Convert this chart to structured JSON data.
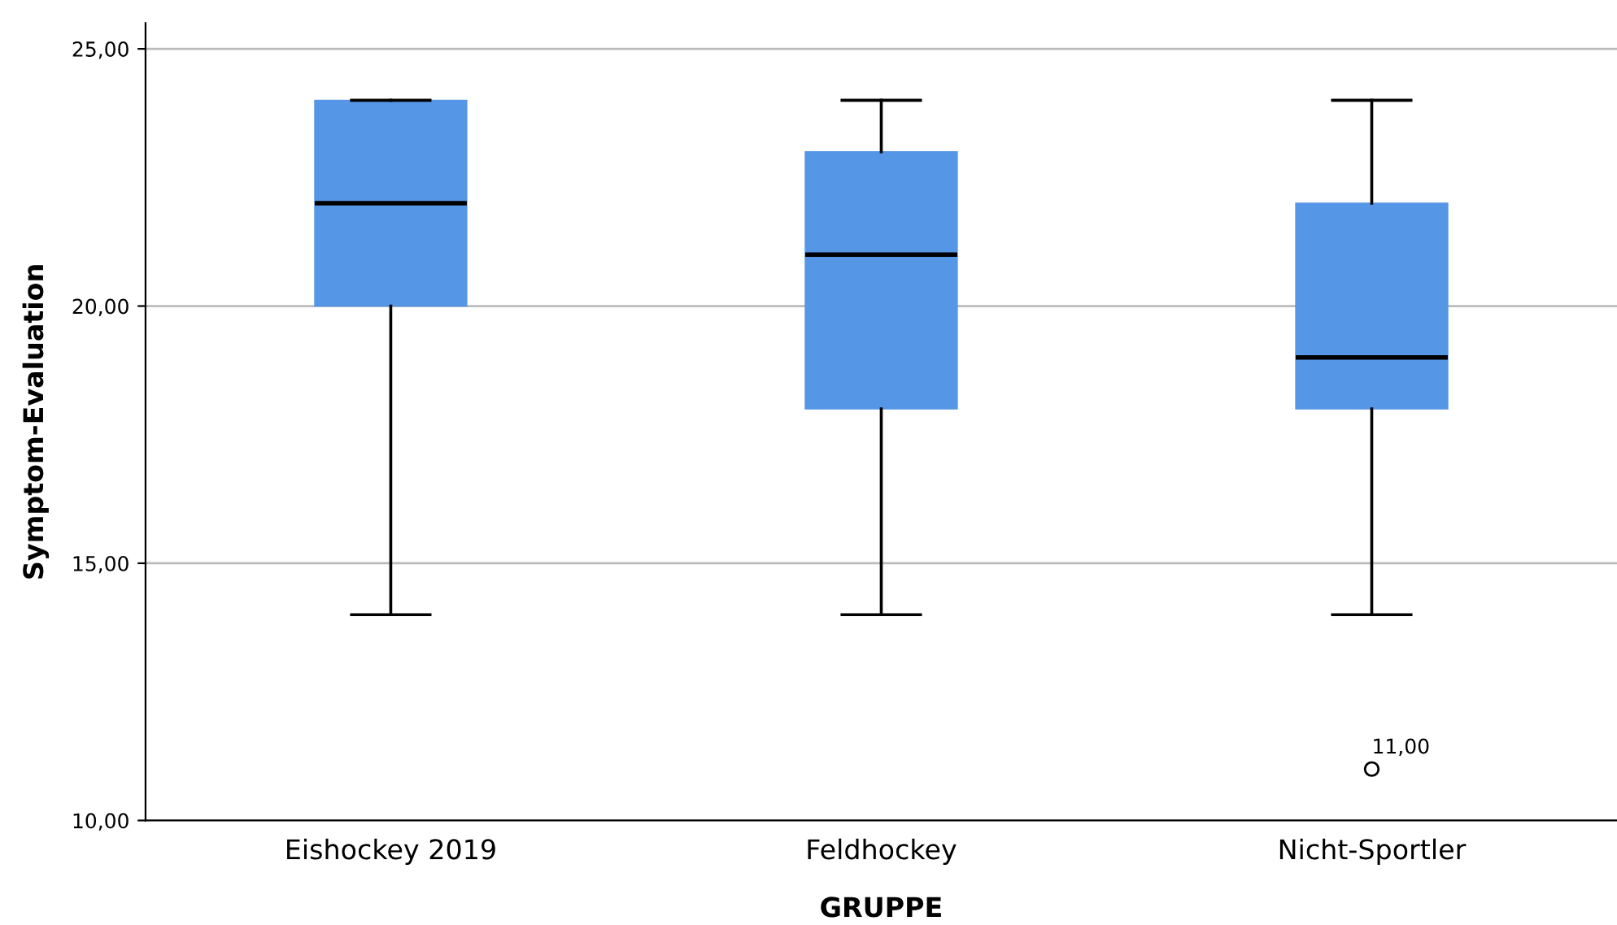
{
  "chart_data": {
    "type": "box",
    "xlabel": "GRUPPE",
    "ylabel": "Symptom-Evaluation",
    "categories": [
      "Eishockey 2019",
      "Feldhockey",
      "Nicht-Sportler"
    ],
    "boxes": [
      {
        "low": 14,
        "q1": 20,
        "median": 22,
        "q3": 24,
        "high": 24
      },
      {
        "low": 14,
        "q1": 18,
        "median": 21,
        "q3": 23,
        "high": 24
      },
      {
        "low": 14,
        "q1": 18,
        "median": 19,
        "q3": 22,
        "high": 24,
        "outliers": [
          11
        ]
      }
    ],
    "color": "#5596e6",
    "ylim": [
      10,
      25.5
    ],
    "yticks": [
      {
        "value": 10,
        "label": "10,00"
      },
      {
        "value": 15,
        "label": "15,00"
      },
      {
        "value": 20,
        "label": "20,00"
      },
      {
        "value": 25,
        "label": "25,00"
      }
    ],
    "grid": "y",
    "annotations": [
      "11,00"
    ]
  }
}
